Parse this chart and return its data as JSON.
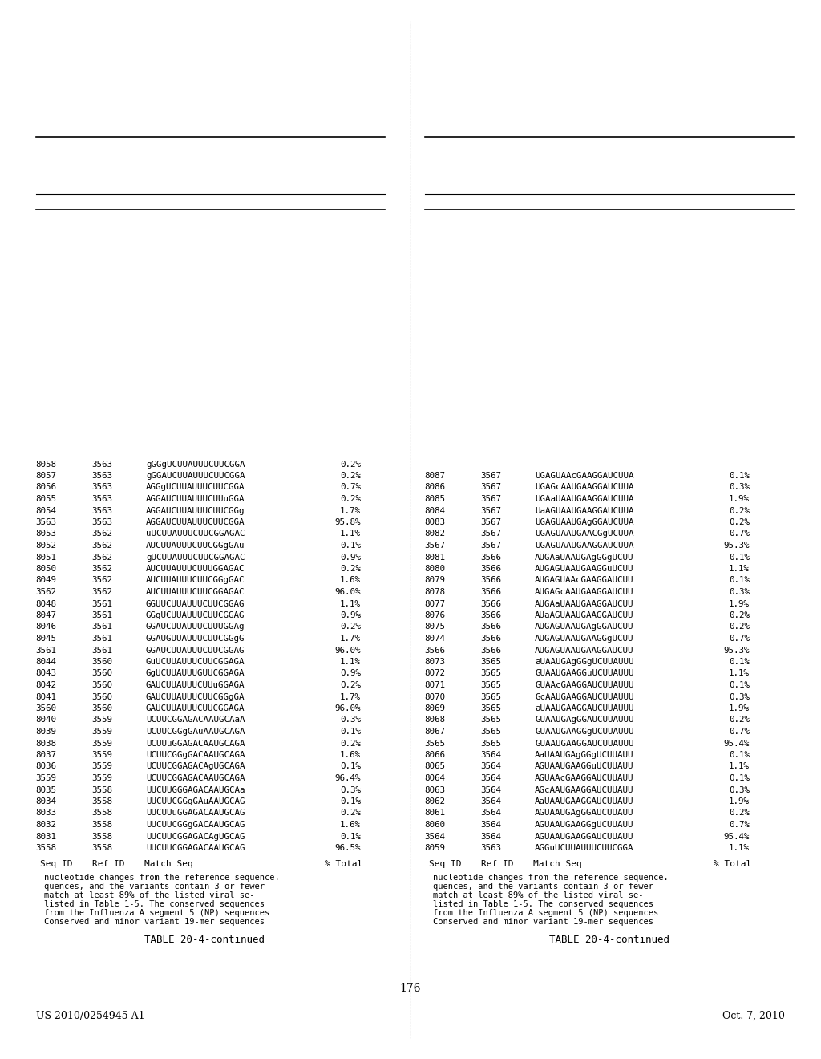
{
  "header_left": "US 2010/0254945 A1",
  "header_right": "Oct. 7, 2010",
  "page_number": "176",
  "table_title": "TABLE 20-4-continued",
  "table_description": "Conserved and minor variant 19-mer sequences\nfrom the Influenza A segment 5 (NP) sequences\nlisted in Table 1-5. The conserved sequences\nmatch at least 89% of the listed viral se-\nquences, and the variants contain 3 or fewer\nnucleotide changes from the reference sequence.",
  "col_headers": [
    "Seq ID",
    "Ref ID",
    "Match Seq",
    "% Total"
  ],
  "left_data": [
    [
      "3558",
      "3558",
      "UUCUUCGGAGACAAUGCAG",
      "96.5%"
    ],
    [
      "8031",
      "3558",
      "UUCUUCGGAGACAgUGCAG",
      "0.1%"
    ],
    [
      "8032",
      "3558",
      "UUCUUCGGgGACAAUGCAG",
      "1.6%"
    ],
    [
      "8033",
      "3558",
      "UUCUUuGGAGACAAUGCAG",
      "0.2%"
    ],
    [
      "8034",
      "3558",
      "UUCUUCGGgGAuAAUGCAG",
      "0.1%"
    ],
    [
      "8035",
      "3558",
      "UUCUUGGGAGACAAUGCAa",
      "0.3%"
    ],
    [
      "3559",
      "3559",
      "UCUUCGGAGACAAUGCAGA",
      "96.4%"
    ],
    [
      "8036",
      "3559",
      "UCUUCGGAGACAgUGCAGA",
      "0.1%"
    ],
    [
      "8037",
      "3559",
      "UCUUCGGgGACAAUGCAGA",
      "1.6%"
    ],
    [
      "8038",
      "3559",
      "UCUUuGGAGACAAUGCAGA",
      "0.2%"
    ],
    [
      "8039",
      "3559",
      "UCUUCGGgGAuAAUGCAGA",
      "0.1%"
    ],
    [
      "8040",
      "3559",
      "UCUUCGGAGACAAUGCAaA",
      "0.3%"
    ],
    [
      "3560",
      "3560",
      "GAUCUUAUUUCUUCGGAGA",
      "96.0%"
    ],
    [
      "8041",
      "3560",
      "GAUCUUAUUUCUUCGGgGA",
      "1.7%"
    ],
    [
      "8042",
      "3560",
      "GAUCUUAUUUCUUuGGAGA",
      "0.2%"
    ],
    [
      "8043",
      "3560",
      "GgUCUUAUUUGUUCGGAGA",
      "0.9%"
    ],
    [
      "8044",
      "3560",
      "GuUCUUAUUUCUUCGGAGA",
      "1.1%"
    ],
    [
      "3561",
      "3561",
      "GGAUCUUAUUUCUUCGGAG",
      "96.0%"
    ],
    [
      "8045",
      "3561",
      "GGAUGUUAUUUCUUCGGgG",
      "1.7%"
    ],
    [
      "8046",
      "3561",
      "GGAUCUUAUUUCUUUGGAg",
      "0.2%"
    ],
    [
      "8047",
      "3561",
      "GGgUCUUAUUUCUUCGGAG",
      "0.9%"
    ],
    [
      "8048",
      "3561",
      "GGUUCUUAUUUCUUCGGAG",
      "1.1%"
    ],
    [
      "3562",
      "3562",
      "AUCUUAUUUCUUCGGAGAC",
      "96.0%"
    ],
    [
      "8049",
      "3562",
      "AUCUUAUUUCUUCGGgGAC",
      "1.6%"
    ],
    [
      "8050",
      "3562",
      "AUCUUAUUUCUUUGGAGAC",
      "0.2%"
    ],
    [
      "8051",
      "3562",
      "gUCUUAUUUCUUCGGAGAC",
      "0.9%"
    ],
    [
      "8052",
      "3562",
      "AUCUUAUUUCUUCGGgGAu",
      "0.1%"
    ],
    [
      "8053",
      "3562",
      "uUCUUAUUUCUUCGGAGAC",
      "1.1%"
    ],
    [
      "3563",
      "3563",
      "AGGAUCUUAUUUCUUCGGA",
      "95.8%"
    ],
    [
      "8054",
      "3563",
      "AGGAUCUUAUUUCUUCGGg",
      "1.7%"
    ],
    [
      "8055",
      "3563",
      "AGGAUCUUAUUUCUUuGGA",
      "0.2%"
    ],
    [
      "8056",
      "3563",
      "AGGgUCUUAUUUCUUCGGA",
      "0.7%"
    ],
    [
      "8057",
      "3563",
      "gGGAUCUUAUUUCUUCGGA",
      "0.2%"
    ],
    [
      "8058",
      "3563",
      "gGGgUCUUAUUUCUUCGGA",
      "0.2%"
    ]
  ],
  "right_data": [
    [
      "8059",
      "3563",
      "AGGuUCUUAUUUCUUCGGA",
      "1.1%"
    ],
    [
      "3564",
      "3564",
      "AGUAAUGAAGGAUCUUAUU",
      "95.4%"
    ],
    [
      "8060",
      "3564",
      "AGUAAUGAAGGgUCUUAUU",
      "0.7%"
    ],
    [
      "8061",
      "3564",
      "AGUAAUGAgGGAUCUUAUU",
      "0.2%"
    ],
    [
      "8062",
      "3564",
      "AaUAAUGAAGGAUCUUAUU",
      "1.9%"
    ],
    [
      "8063",
      "3564",
      "AGcAAUGAAGGAUCUUAUU",
      "0.3%"
    ],
    [
      "8064",
      "3564",
      "AGUAAcGAAGGAUCUUAUU",
      "0.1%"
    ],
    [
      "8065",
      "3564",
      "AGUAAUGAAGGuUCUUAUU",
      "1.1%"
    ],
    [
      "8066",
      "3564",
      "AaUAAUGAgGGgUCUUAUU",
      "0.1%"
    ],
    [
      "3565",
      "3565",
      "GUAAUGAAGGAUCUUAUUU",
      "95.4%"
    ],
    [
      "8067",
      "3565",
      "GUAAUGAAGGgUCUUAUUU",
      "0.7%"
    ],
    [
      "8068",
      "3565",
      "GUAAUGAgGGAUCUUAUUU",
      "0.2%"
    ],
    [
      "8069",
      "3565",
      "aUAAUGAAGGAUCUUAUUU",
      "1.9%"
    ],
    [
      "8070",
      "3565",
      "GcAAUGAAGGAUCUUAUUU",
      "0.3%"
    ],
    [
      "8071",
      "3565",
      "GUAAcGAAGGAUCUUAUUU",
      "0.1%"
    ],
    [
      "8072",
      "3565",
      "GUAAUGAAGGuUCUUAUUU",
      "1.1%"
    ],
    [
      "8073",
      "3565",
      "aUAAUGAgGGgUCUUAUUU",
      "0.1%"
    ],
    [
      "3566",
      "3566",
      "AUGAGUAAUGAAGGAUCUU",
      "95.3%"
    ],
    [
      "8074",
      "3566",
      "AUGAGUAAUGAAGGgUCUU",
      "0.7%"
    ],
    [
      "8075",
      "3566",
      "AUGAGUAAUGAgGGAUCUU",
      "0.2%"
    ],
    [
      "8076",
      "3566",
      "AUaAGUAAUGAAGGAUCUU",
      "0.2%"
    ],
    [
      "8077",
      "3566",
      "AUGAaUAAUGAAGGAUCUU",
      "1.9%"
    ],
    [
      "8078",
      "3566",
      "AUGAGcAAUGAAGGAUCUU",
      "0.3%"
    ],
    [
      "8079",
      "3566",
      "AUGAGUAAcGAAGGAUCUU",
      "0.1%"
    ],
    [
      "8080",
      "3566",
      "AUGAGUAAUGAAGGuUCUU",
      "1.1%"
    ],
    [
      "8081",
      "3566",
      "AUGAaUAAUGAgGGgUCUU",
      "0.1%"
    ],
    [
      "3567",
      "3567",
      "UGAGUAAUGAAGGAUCUUA",
      "95.3%"
    ],
    [
      "8082",
      "3567",
      "UGAGUAAUGAACGgUCUUA",
      "0.7%"
    ],
    [
      "8083",
      "3567",
      "UGAGUAAUGAgGGAUCUUA",
      "0.2%"
    ],
    [
      "8084",
      "3567",
      "UaAGUAAUGAAGGAUCUUA",
      "0.2%"
    ],
    [
      "8085",
      "3567",
      "UGAaUAAUGAAGGAUCUUA",
      "1.9%"
    ],
    [
      "8086",
      "3567",
      "UGAGcAAUGAAGGAUCUUA",
      "0.3%"
    ],
    [
      "8087",
      "3567",
      "UGAGUAAcGAAGGAUCUUA",
      "0.1%"
    ]
  ]
}
